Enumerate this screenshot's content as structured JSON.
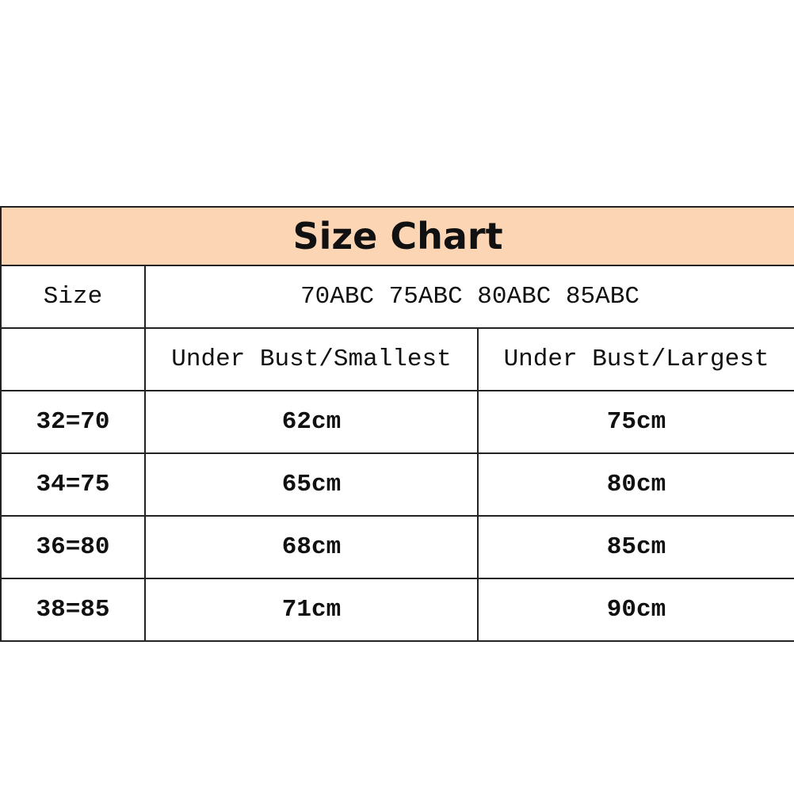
{
  "title": "Size Chart",
  "size_label": "Size",
  "sizes": "70ABC 75ABC 80ABC 85ABC",
  "columns": [
    "",
    "Under Bust/Smallest",
    "Under Bust/Largest"
  ],
  "rows": [
    [
      "32=70",
      "62cm",
      "75cm"
    ],
    [
      "34=75",
      "65cm",
      "80cm"
    ],
    [
      "36=80",
      "68cm",
      "85cm"
    ],
    [
      "38=85",
      "71cm",
      "90cm"
    ]
  ],
  "colors": {
    "header_bg": "#fcd5b4",
    "border": "#222222"
  }
}
